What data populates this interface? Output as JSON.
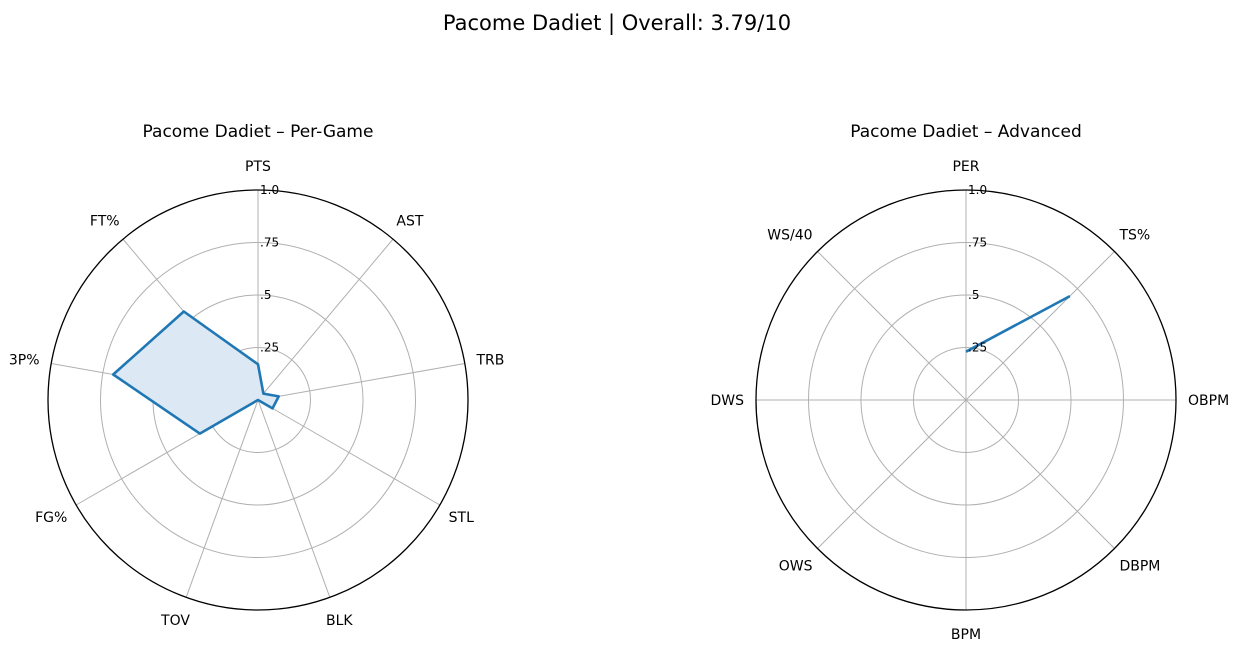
{
  "figure": {
    "suptitle": "Pacome Dadiet | Overall: 3.79/10"
  },
  "chart_data": [
    {
      "type": "radar",
      "title": "Pacome Dadiet – Per-Game",
      "categories": [
        "PTS",
        "AST",
        "TRB",
        "STL",
        "BLK",
        "TOV",
        "FG%",
        "3P%",
        "FT%"
      ],
      "series": [
        {
          "values": [
            0.17,
            0.04,
            0.1,
            0.08,
            0.0,
            0.0,
            0.32,
            0.7,
            0.55
          ]
        }
      ],
      "rlim": [
        0,
        1
      ],
      "rticks": [
        0.25,
        0.5,
        0.75,
        1.0
      ],
      "rtick_labels": [
        ".25",
        ".5",
        ".75",
        "1.0"
      ],
      "fill": true,
      "color": "#1f77b4",
      "fill_color": "#dce8f3",
      "grid": true
    },
    {
      "type": "radar",
      "title": "Pacome Dadiet – Advanced",
      "categories": [
        "PER",
        "TS%",
        "OBPM",
        "DBPM",
        "BPM",
        "OWS",
        "DWS",
        "WS/40"
      ],
      "series": [
        {
          "values": [
            0.23,
            0.7,
            null,
            null,
            null,
            null,
            null,
            null
          ]
        }
      ],
      "rlim": [
        0,
        1
      ],
      "rticks": [
        0.25,
        0.5,
        0.75,
        1.0
      ],
      "rtick_labels": [
        ".25",
        ".5",
        ".75",
        "1.0"
      ],
      "fill": false,
      "color": "#1f77b4",
      "grid": true
    }
  ]
}
